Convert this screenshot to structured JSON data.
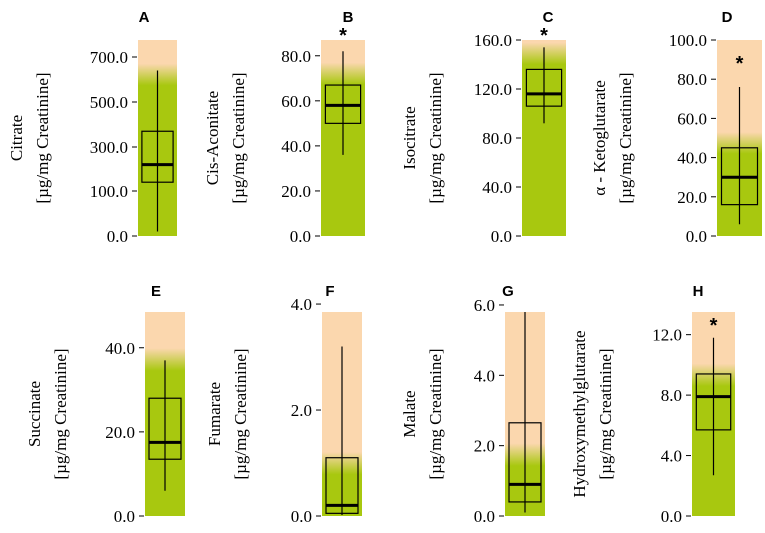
{
  "chart_data": [
    {
      "type": "box",
      "panel": "A",
      "ylabel": [
        "Citrate",
        "[µg/mg Creatinine]"
      ],
      "yticks": [
        0,
        100,
        300,
        500,
        700
      ],
      "tick_labels": [
        "0.0",
        "100.0",
        "300.0",
        "500.0",
        "700.0"
      ],
      "scale": "nonlinear",
      "ylim": [
        0,
        760
      ],
      "box": {
        "whisker_low": 10,
        "q1": 140,
        "median": 220,
        "q3": 370,
        "whisker_high": 640
      },
      "green_top": 600,
      "significant": false,
      "marker": ""
    },
    {
      "type": "box",
      "panel": "B",
      "ylabel": [
        "Cis-Aconitate",
        "[µg/mg Creatinine]"
      ],
      "yticks": [
        0,
        20,
        40,
        60,
        80
      ],
      "tick_labels": [
        "0.0",
        "20.0",
        "40.0",
        "60.0",
        "80.0"
      ],
      "scale": "linear",
      "ylim": [
        0,
        87
      ],
      "box": {
        "whisker_low": 36,
        "q1": 50,
        "median": 58,
        "q3": 67,
        "whisker_high": 82
      },
      "green_top": 70,
      "significant": true,
      "marker": "*"
    },
    {
      "type": "box",
      "panel": "C",
      "ylabel": [
        "Isocitrate",
        "[µg/mg Creatinine]"
      ],
      "yticks": [
        0,
        40,
        80,
        120,
        160
      ],
      "tick_labels": [
        "0.0",
        "40.0",
        "80.0",
        "120.0",
        "160.0"
      ],
      "scale": "linear",
      "ylim": [
        0,
        160
      ],
      "box": {
        "whisker_low": 92,
        "q1": 106,
        "median": 116,
        "q3": 136,
        "whisker_high": 154
      },
      "green_top": 145,
      "significant": true,
      "marker": "*"
    },
    {
      "type": "box",
      "panel": "D",
      "ylabel": [
        "α - Ketoglutarate",
        "[µg/mg Creatinine]"
      ],
      "yticks": [
        0,
        20,
        40,
        60,
        80,
        100
      ],
      "tick_labels": [
        "0.0",
        "20.0",
        "40.0",
        "60.0",
        "80.0",
        "100.0"
      ],
      "scale": "linear",
      "ylim": [
        0,
        100
      ],
      "box": {
        "whisker_low": 6,
        "q1": 16,
        "median": 30,
        "q3": 45,
        "whisker_high": 76
      },
      "green_top": 45,
      "significant": true,
      "marker": "*"
    },
    {
      "type": "box",
      "panel": "E",
      "ylabel": [
        "Succinate",
        "[µg/mg Creatinine]"
      ],
      "yticks": [
        0,
        20,
        40
      ],
      "tick_labels": [
        "0.0",
        "20.0",
        "40.0"
      ],
      "scale": "linear",
      "ylim": [
        0,
        48.5
      ],
      "box": {
        "whisker_low": 6,
        "q1": 13.5,
        "median": 17.5,
        "q3": 28,
        "whisker_high": 37
      },
      "green_top": 36,
      "significant": false,
      "marker": ""
    },
    {
      "type": "box",
      "panel": "F",
      "ylabel": [
        "Fumarate",
        "[µg/mg Creatinine]"
      ],
      "yticks": [
        0,
        2,
        4
      ],
      "tick_labels": [
        "0.0",
        "2.0",
        "4.0"
      ],
      "scale": "linear",
      "ylim": [
        0,
        3.85
      ],
      "box": {
        "whisker_low": 0.02,
        "q1": 0.05,
        "median": 0.2,
        "q3": 1.1,
        "whisker_high": 3.2
      },
      "green_top": 0.9,
      "significant": false,
      "marker": ""
    },
    {
      "type": "box",
      "panel": "G",
      "ylabel": [
        "Malate",
        "[µg/mg Creatinine]"
      ],
      "yticks": [
        0,
        2,
        4,
        6
      ],
      "tick_labels": [
        "0.0",
        "2.0",
        "4.0",
        "6.0"
      ],
      "scale": "linear",
      "ylim": [
        0,
        5.8
      ],
      "box": {
        "whisker_low": 0.1,
        "q1": 0.4,
        "median": 0.9,
        "q3": 2.65,
        "whisker_high": 5.8
      },
      "green_top": 1.6,
      "significant": false,
      "marker": ""
    },
    {
      "type": "box",
      "panel": "H",
      "ylabel": [
        "Hydroxymethylglutarate",
        "[µg/mg Creatinine]"
      ],
      "yticks": [
        0,
        4,
        8,
        12
      ],
      "tick_labels": [
        "0.0",
        "4.0",
        "8.0",
        "12.0"
      ],
      "scale": "linear",
      "ylim": [
        0,
        13.5
      ],
      "box": {
        "whisker_low": 2.7,
        "q1": 5.7,
        "median": 7.9,
        "q3": 9.4,
        "whisker_high": 11.8
      },
      "green_top": 9.0,
      "significant": true,
      "marker": "*"
    }
  ],
  "colors": {
    "orange": "#fbd7ae",
    "green": "#a8c80f",
    "line": "#000000"
  }
}
